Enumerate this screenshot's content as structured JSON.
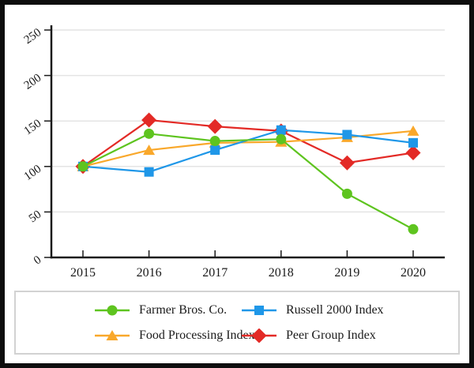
{
  "frame": {
    "background": "#ffffff",
    "border_color": "#0d0d0d"
  },
  "chart_data": {
    "type": "line",
    "title": "",
    "xlabel": "",
    "ylabel": "",
    "x": [
      2015,
      2016,
      2017,
      2018,
      2019,
      2020
    ],
    "xtick_labels": [
      "2015",
      "2016",
      "2017",
      "2018",
      "2019",
      "2020"
    ],
    "series": [
      {
        "name": "Farmer Bros. Co.",
        "marker": "circle",
        "color": "#5ec41f",
        "values": [
          100,
          136,
          128,
          130,
          70,
          31
        ]
      },
      {
        "name": "Russell 2000 Index",
        "marker": "square",
        "color": "#1f97e8",
        "values": [
          100,
          94,
          118,
          140,
          135,
          126
        ]
      },
      {
        "name": "Food Processing Index",
        "marker": "triangle",
        "color": "#f9a82b",
        "values": [
          100,
          118,
          126,
          127,
          132,
          139
        ]
      },
      {
        "name": "Peer Group Index",
        "marker": "diamond",
        "color": "#e32a26",
        "values": [
          100,
          151,
          144,
          139,
          104,
          115
        ]
      }
    ],
    "ylim": [
      0,
      250
    ],
    "yticks": [
      0,
      50,
      100,
      150,
      200,
      250
    ],
    "grid": true,
    "grid_color": "#e4e4e4",
    "axis_color": "#1a1a1a",
    "tick_label_color": "#1a1a1a",
    "ytick_label_rotation_deg": -35,
    "legend_position": "bottom",
    "legend_order": [
      0,
      1,
      2,
      3
    ],
    "draw_order": [
      3,
      2,
      1,
      0
    ]
  }
}
